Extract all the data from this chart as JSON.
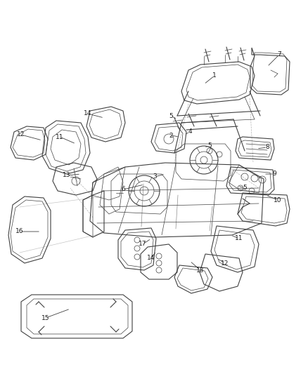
{
  "bg_color": "#ffffff",
  "line_color": "#404040",
  "label_color": "#1a1a1a",
  "fig_width": 4.38,
  "fig_height": 5.33,
  "dpi": 100,
  "labels": [
    [
      "1",
      305,
      108
    ],
    [
      "2",
      243,
      193
    ],
    [
      "3",
      220,
      252
    ],
    [
      "4",
      270,
      188
    ],
    [
      "5",
      243,
      165
    ],
    [
      "5",
      298,
      208
    ],
    [
      "5",
      348,
      268
    ],
    [
      "6",
      175,
      270
    ],
    [
      "7",
      397,
      78
    ],
    [
      "8",
      380,
      210
    ],
    [
      "9",
      390,
      248
    ],
    [
      "10",
      395,
      285
    ],
    [
      "11",
      85,
      195
    ],
    [
      "11",
      340,
      340
    ],
    [
      "12",
      30,
      192
    ],
    [
      "12",
      320,
      375
    ],
    [
      "13",
      95,
      250
    ],
    [
      "13",
      285,
      385
    ],
    [
      "14",
      125,
      162
    ],
    [
      "14",
      215,
      368
    ],
    [
      "15",
      65,
      453
    ],
    [
      "16",
      28,
      330
    ],
    [
      "17",
      203,
      348
    ]
  ],
  "leader_lines": [
    [
      [
        305,
        108
      ],
      [
        290,
        120
      ]
    ],
    [
      [
        243,
        193
      ],
      [
        255,
        195
      ]
    ],
    [
      [
        220,
        252
      ],
      [
        235,
        248
      ]
    ],
    [
      [
        270,
        188
      ],
      [
        262,
        192
      ]
    ],
    [
      [
        243,
        165
      ],
      [
        252,
        170
      ]
    ],
    [
      [
        298,
        208
      ],
      [
        290,
        210
      ]
    ],
    [
      [
        348,
        268
      ],
      [
        338,
        265
      ]
    ],
    [
      [
        175,
        270
      ],
      [
        205,
        263
      ]
    ],
    [
      [
        397,
        78
      ],
      [
        380,
        95
      ]
    ],
    [
      [
        380,
        210
      ],
      [
        365,
        212
      ]
    ],
    [
      [
        390,
        248
      ],
      [
        375,
        248
      ]
    ],
    [
      [
        395,
        285
      ],
      [
        378,
        278
      ]
    ],
    [
      [
        85,
        195
      ],
      [
        108,
        205
      ]
    ],
    [
      [
        340,
        340
      ],
      [
        328,
        335
      ]
    ],
    [
      [
        30,
        192
      ],
      [
        60,
        200
      ]
    ],
    [
      [
        320,
        375
      ],
      [
        308,
        368
      ]
    ],
    [
      [
        95,
        250
      ],
      [
        115,
        248
      ]
    ],
    [
      [
        285,
        385
      ],
      [
        270,
        372
      ]
    ],
    [
      [
        125,
        162
      ],
      [
        148,
        168
      ]
    ],
    [
      [
        215,
        368
      ],
      [
        222,
        358
      ]
    ],
    [
      [
        65,
        453
      ],
      [
        100,
        440
      ]
    ],
    [
      [
        28,
        330
      ],
      [
        58,
        330
      ]
    ],
    [
      [
        203,
        348
      ],
      [
        215,
        340
      ]
    ]
  ]
}
